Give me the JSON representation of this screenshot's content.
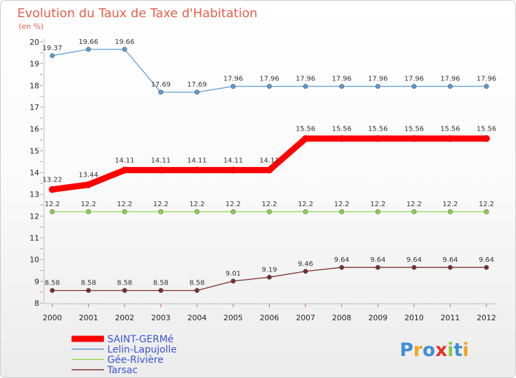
{
  "chart_data": {
    "type": "line",
    "title": "Evolution du Taux de Taxe d'Habitation",
    "subtitle": "(en %)",
    "xlabel": "",
    "ylabel": "",
    "x": [
      "2000",
      "2001",
      "2002",
      "2003",
      "2004",
      "2005",
      "2006",
      "2007",
      "2008",
      "2009",
      "2010",
      "2011",
      "2012"
    ],
    "ylim": [
      8,
      20
    ],
    "yticks": [
      "8",
      "9",
      "10",
      "11",
      "12",
      "13",
      "14",
      "15",
      "16",
      "17",
      "18",
      "19",
      "20"
    ],
    "grid": false,
    "legend_position": "bottom-left",
    "series": [
      {
        "name": "Lelin-Lapujolle",
        "color": "#5b9bd5",
        "values": [
          19.37,
          19.66,
          19.66,
          17.69,
          17.69,
          17.96,
          17.96,
          17.96,
          17.96,
          17.96,
          17.96,
          17.96,
          17.96
        ],
        "labels": [
          "19.37",
          "19.66",
          "19.66",
          "17.69",
          "17.69",
          "17.96",
          "17.96",
          "17.96",
          "17.96",
          "17.96",
          "17.96",
          "17.96",
          "17.96"
        ]
      },
      {
        "name": "SAINT-GERMé",
        "color": "#ff0000",
        "values": [
          13.22,
          13.44,
          14.11,
          14.11,
          14.11,
          14.11,
          14.11,
          15.56,
          15.56,
          15.56,
          15.56,
          15.56,
          15.56
        ],
        "labels": [
          "13.22",
          "13.44",
          "14.11",
          "14.11",
          "14.11",
          "14.11",
          "14.11",
          "15.56",
          "15.56",
          "15.56",
          "15.56",
          "15.56",
          "15.56"
        ]
      },
      {
        "name": "Gée-Rivière",
        "color": "#8ed64a",
        "values": [
          12.2,
          12.2,
          12.2,
          12.2,
          12.2,
          12.2,
          12.2,
          12.2,
          12.2,
          12.2,
          12.2,
          12.2,
          12.2
        ],
        "labels": [
          "12.2",
          "12.2",
          "12.2",
          "12.2",
          "12.2",
          "12.2",
          "12.2",
          "12.2",
          "12.2",
          "12.2",
          "12.2",
          "12.2",
          "12.2"
        ]
      },
      {
        "name": "Tarsac",
        "color": "#7a2d2d",
        "values": [
          8.58,
          8.58,
          8.58,
          8.58,
          8.58,
          9.01,
          9.19,
          9.46,
          9.64,
          9.64,
          9.64,
          9.64,
          9.64
        ],
        "labels": [
          "8.58",
          "8.58",
          "8.58",
          "8.58",
          "8.58",
          "9.01",
          "9.19",
          "9.46",
          "9.64",
          "9.64",
          "9.64",
          "9.64",
          "9.64"
        ]
      }
    ],
    "legend": [
      "SAINT-GERMé",
      "Lelin-Lapujolle",
      "Gée-Rivière",
      "Tarsac"
    ]
  },
  "brand": {
    "text": "Proxiti"
  }
}
